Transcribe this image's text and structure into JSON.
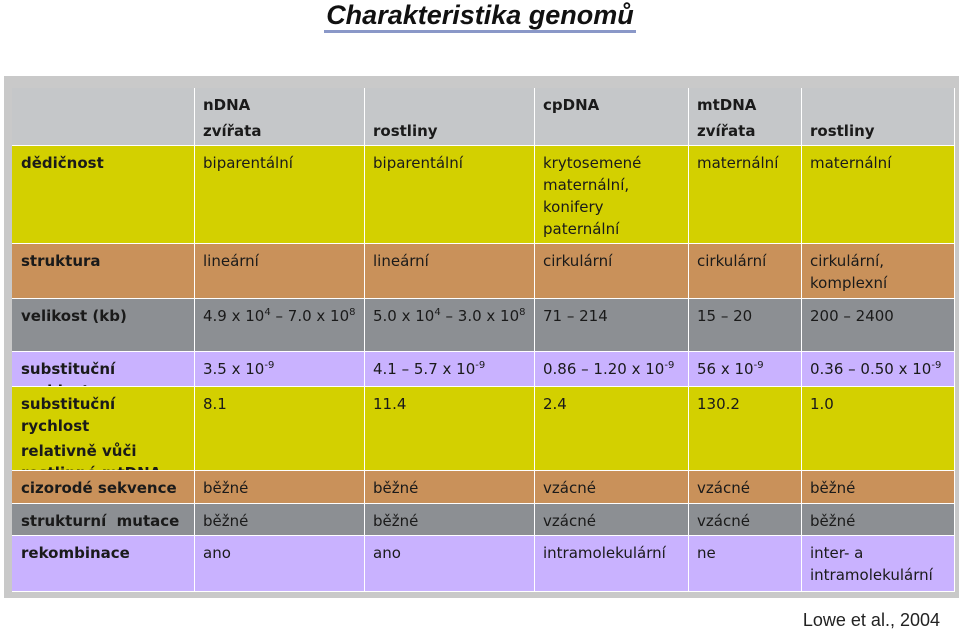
{
  "title": "Charakteristika genomů",
  "citation": "Lowe et al., 2004",
  "colors": {
    "header": "#c5c7c9",
    "yellow": "#d3d000",
    "orange": "#c9915a",
    "gray": "#8c8f93",
    "violet": "#c9b2ff",
    "title_underline": "#8a98c8"
  },
  "table": {
    "header": {
      "c1_line1": "nDNA",
      "c1_line2": "zvířata",
      "c2_line1": "",
      "c2_line2": "rostliny",
      "c3_line1": "cpDNA",
      "c3_line2": "",
      "c4_line1": "mtDNA",
      "c4_line2": "zvířata",
      "c5_line1": "",
      "c5_line2": "rostliny"
    },
    "rows": {
      "dedicnost": {
        "label": "dědičnost",
        "c1": "biparentální",
        "c2": "biparentální",
        "c3": "krytosemené maternální, konifery paternální",
        "c4": "maternální",
        "c5": "maternální"
      },
      "struktura": {
        "label": "struktura",
        "c1": "lineární",
        "c2": "lineární",
        "c3": "cirkulární",
        "c4": "cirkulární",
        "c5": "cirkulární, komplexní"
      },
      "velikost": {
        "label": "velikost (kb)",
        "c1_a": "4.9 x 10",
        "c1_a_exp": "4",
        "c1_b": " – 7.0 x 10",
        "c1_b_exp": "8",
        "c2_a": "5.0 x 10",
        "c2_a_exp": "4",
        "c2_b": " – 3.0 x 10",
        "c2_b_exp": "8",
        "c3": "71 – 214",
        "c4": "15 – 20",
        "c5": "200 – 2400"
      },
      "substitucni": {
        "label": "substituční rychlost",
        "c1": "3.5 x 10",
        "c1_exp": "-9",
        "c2": "4.1 – 5.7 x 10",
        "c2_exp": "-9",
        "c3": "0.86 – 1.20 x 10",
        "c3_exp": "-9",
        "c4": "56 x 10",
        "c4_exp": "-9",
        "c5": "0.36 – 0.50 x 10",
        "c5_exp": "-9"
      },
      "relativne": {
        "label_line1": "substituční rychlost",
        "label_line2": "relativně vůči",
        "label_line3": "rostlinné mtDNA",
        "c1": "8.1",
        "c2": "11.4",
        "c3": "2.4",
        "c4": "130.2",
        "c5": "1.0"
      },
      "cizorode": {
        "label": "cizorodé sekvence",
        "c1": "běžné",
        "c2": "běžné",
        "c3": "vzácné",
        "c4": "vzácné",
        "c5": "běžné"
      },
      "strukturni": {
        "label": "strukturní  mutace",
        "c1": "běžné",
        "c2": "běžné",
        "c3": "vzácné",
        "c4": "vzácné",
        "c5": "běžné"
      },
      "rekombinace": {
        "label": "rekombinace",
        "c1": "ano",
        "c2": "ano",
        "c3": "intramolekulární",
        "c4": "ne",
        "c5": "inter- a intramolekulární"
      }
    }
  }
}
